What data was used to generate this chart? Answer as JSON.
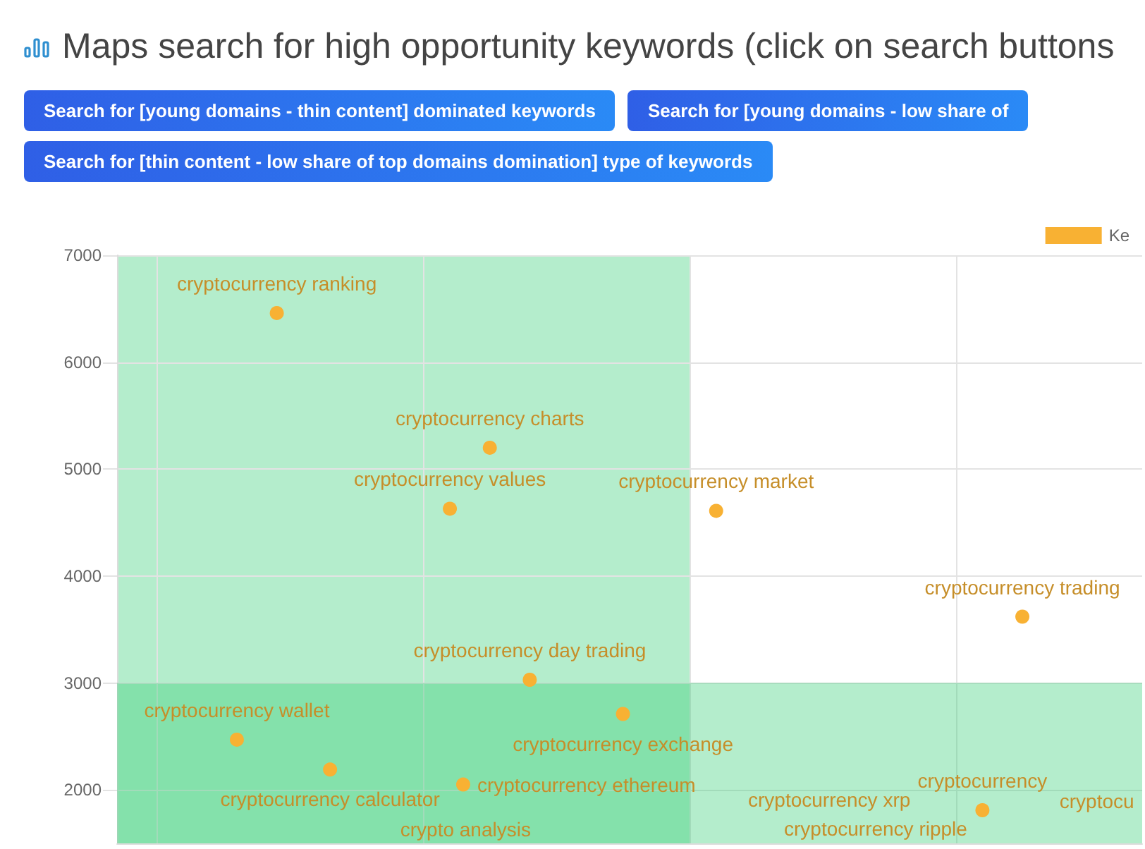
{
  "chart_data": {
    "type": "scatter",
    "title": "Maps search for high opportunity keywords (click on search buttons",
    "annotations": [
      "Search for [young domains - thin content] dominated keywords",
      "Search for [young domains - low share of",
      "Search for [thin content - low share of top domains domination] type of keywords",
      "cryptocurrency ripple",
      "cryptocurrency xrp",
      "crypto analysis",
      "cryptocu"
    ],
    "categories": [
      null,
      null,
      null,
      null,
      null,
      null,
      null,
      null,
      null,
      null,
      null,
      null,
      null,
      null,
      null,
      null,
      null,
      null,
      null,
      null,
      null,
      null,
      null,
      null,
      null,
      null,
      null,
      null,
      null,
      null,
      null,
      null,
      null,
      null,
      null,
      null,
      null,
      null,
      null,
      null,
      null,
      null,
      null,
      null,
      null,
      null,
      null,
      null,
      null,
      null,
      null,
      null,
      null,
      null,
      null,
      null,
      null,
      null,
      null,
      null,
      null,
      null,
      null,
      null,
      null,
      null,
      null,
      null,
      null,
      null,
      null,
      null,
      null,
      null,
      null,
      null,
      null,
      null
    ],
    "series": [
      {
        "name": "Ke",
        "color": "#f8b133",
        "values": [
          null,
          null,
          null,
          null,
          null,
          null,
          null,
          null,
          null,
          2470,
          null,
          null,
          6460,
          null,
          null,
          null,
          2190,
          null,
          null,
          null,
          null,
          null,
          null,
          null,
          null,
          4630,
          2050,
          null,
          5200,
          null,
          null,
          3030,
          null,
          null,
          null,
          null,
          null,
          null,
          2710,
          null,
          null,
          null,
          null,
          null,
          null,
          4610,
          null,
          null,
          null,
          null,
          null,
          null,
          null,
          null,
          null,
          null,
          null,
          null,
          null,
          null,
          null,
          null,
          null,
          null,
          null,
          1810,
          null,
          null,
          3620,
          null,
          null,
          null,
          null,
          null,
          null,
          null,
          null,
          null
        ],
        "value_labels": [
          null,
          null,
          null,
          null,
          null,
          null,
          null,
          null,
          null,
          "cryptocurrency wallet",
          null,
          null,
          "cryptocurrency ranking",
          null,
          null,
          null,
          "cryptocurrency calculator",
          null,
          null,
          null,
          null,
          null,
          null,
          null,
          null,
          "cryptocurrency values",
          "cryptocurrency ethereum",
          null,
          "cryptocurrency charts",
          null,
          null,
          "cryptocurrency day trading",
          null,
          null,
          null,
          null,
          null,
          null,
          "cryptocurrency exchange",
          null,
          null,
          null,
          null,
          null,
          null,
          "cryptocurrency market",
          null,
          null,
          null,
          null,
          null,
          null,
          null,
          null,
          null,
          null,
          null,
          null,
          null,
          null,
          null,
          null,
          null,
          null,
          null,
          "cryptocurrency",
          null,
          null,
          "cryptocurrency trading",
          null,
          null,
          null,
          null,
          null,
          null,
          null,
          null,
          null
        ]
      }
    ],
    "ylim": [
      1500,
      7000
    ],
    "yticks": [
      2000,
      3000,
      4000,
      5000,
      6000,
      7000
    ],
    "bands": [
      {
        "axis": "y",
        "from": 1500,
        "to": 3000,
        "color": "#2ecc71"
      }
    ],
    "grid": true,
    "legend": "top right",
    "marker": "circle",
    "tick_labels": "y"
  }
}
